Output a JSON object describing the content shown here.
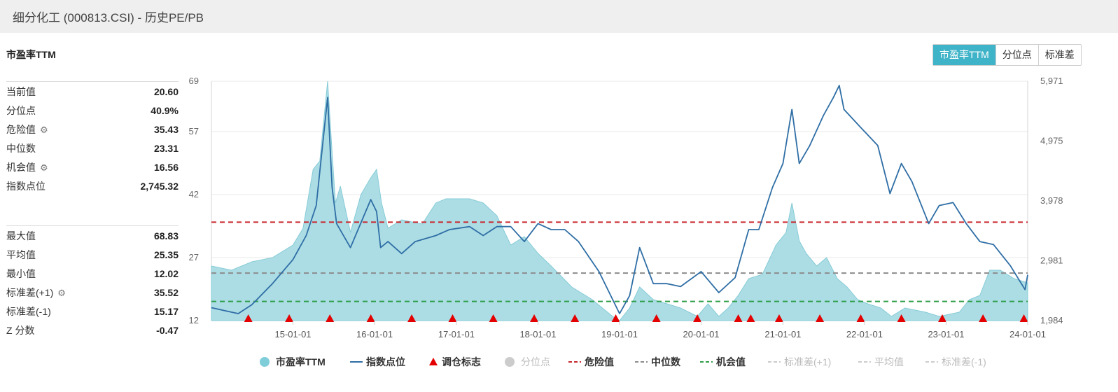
{
  "header": {
    "title": "细分化工 (000813.CSI) - 历史PE/PB"
  },
  "section_title": "市盈率TTM",
  "tabs": [
    {
      "label": "市盈率TTM",
      "active": true
    },
    {
      "label": "分位点",
      "active": false
    },
    {
      "label": "标准差",
      "active": false
    }
  ],
  "stats_top": [
    {
      "label": "当前值",
      "value": "20.60",
      "gear": false
    },
    {
      "label": "分位点",
      "value": "40.9%",
      "gear": false
    },
    {
      "label": "危险值",
      "value": "35.43",
      "gear": true
    },
    {
      "label": "中位数",
      "value": "23.31",
      "gear": false
    },
    {
      "label": "机会值",
      "value": "16.56",
      "gear": true
    },
    {
      "label": "指数点位",
      "value": "2,745.32",
      "gear": false
    }
  ],
  "stats_bottom": [
    {
      "label": "最大值",
      "value": "68.83",
      "gear": false
    },
    {
      "label": "平均值",
      "value": "25.35",
      "gear": false
    },
    {
      "label": "最小值",
      "value": "12.02",
      "gear": false
    },
    {
      "label": "标准差(+1)",
      "value": "35.52",
      "gear": true
    },
    {
      "label": "标准差(-1)",
      "value": "15.17",
      "gear": false
    },
    {
      "label": "Z 分数",
      "value": "-0.47",
      "gear": false
    }
  ],
  "icons": {
    "settings": "gear-icon"
  },
  "colors": {
    "accent": "#3fb3c8",
    "pe_fill": "#9dd7e0",
    "index_line": "#2f6ea5",
    "danger": "#c9262c",
    "median": "#8c8c8c",
    "opportunity": "#2e9e47",
    "rebalance": "#e50000"
  },
  "chart_data": {
    "type": "line",
    "x_ticks": [
      "15-01-01",
      "16-01-01",
      "17-01-01",
      "18-01-01",
      "19-01-01",
      "20-01-01",
      "21-01-01",
      "22-01-01",
      "23-01-01",
      "24-01-01"
    ],
    "x_range": [
      "2014-01-01",
      "2024-01-01"
    ],
    "y_left": {
      "ticks": [
        "12",
        "27",
        "42",
        "57",
        "69"
      ],
      "range": [
        12,
        69
      ]
    },
    "y_right": {
      "ticks": [
        "1,984",
        "2,981",
        "3,978",
        "4,975",
        "5,971"
      ],
      "range": [
        1984,
        5971
      ]
    },
    "hlines": [
      {
        "name": "危险值",
        "value": 35.43
      },
      {
        "name": "中位数",
        "value": 23.31
      },
      {
        "name": "机会值",
        "value": 16.56
      }
    ],
    "series": [
      {
        "name": "市盈率TTM",
        "type": "area",
        "axis": "left",
        "points": [
          [
            "2014-01-01",
            25
          ],
          [
            "2014-04-01",
            24
          ],
          [
            "2014-07-01",
            26
          ],
          [
            "2014-10-01",
            27
          ],
          [
            "2015-01-01",
            30
          ],
          [
            "2015-02-15",
            34
          ],
          [
            "2015-04-01",
            48
          ],
          [
            "2015-05-01",
            50
          ],
          [
            "2015-06-05",
            69
          ],
          [
            "2015-06-25",
            52
          ],
          [
            "2015-07-10",
            40
          ],
          [
            "2015-08-01",
            44
          ],
          [
            "2015-09-15",
            33
          ],
          [
            "2015-11-01",
            42
          ],
          [
            "2015-12-15",
            46
          ],
          [
            "2016-01-10",
            48
          ],
          [
            "2016-02-01",
            40
          ],
          [
            "2016-03-01",
            34
          ],
          [
            "2016-05-01",
            36
          ],
          [
            "2016-08-01",
            35
          ],
          [
            "2016-10-01",
            40
          ],
          [
            "2016-11-15",
            41
          ],
          [
            "2017-01-01",
            41
          ],
          [
            "2017-03-01",
            41
          ],
          [
            "2017-05-01",
            40
          ],
          [
            "2017-07-01",
            37
          ],
          [
            "2017-09-01",
            30
          ],
          [
            "2017-11-01",
            32
          ],
          [
            "2018-01-01",
            28
          ],
          [
            "2018-03-01",
            25
          ],
          [
            "2018-06-01",
            20
          ],
          [
            "2018-09-01",
            17
          ],
          [
            "2018-12-01",
            13
          ],
          [
            "2019-01-01",
            12
          ],
          [
            "2019-02-15",
            15
          ],
          [
            "2019-04-01",
            20
          ],
          [
            "2019-06-01",
            17
          ],
          [
            "2019-08-01",
            16
          ],
          [
            "2019-10-01",
            15
          ],
          [
            "2019-12-15",
            13
          ],
          [
            "2020-02-01",
            16
          ],
          [
            "2020-03-20",
            13
          ],
          [
            "2020-05-01",
            15
          ],
          [
            "2020-06-15",
            18
          ],
          [
            "2020-08-01",
            22
          ],
          [
            "2020-10-01",
            23
          ],
          [
            "2020-12-01",
            30
          ],
          [
            "2021-01-15",
            33
          ],
          [
            "2021-02-10",
            40
          ],
          [
            "2021-03-15",
            31
          ],
          [
            "2021-04-15",
            28
          ],
          [
            "2021-06-01",
            25
          ],
          [
            "2021-07-15",
            27
          ],
          [
            "2021-09-01",
            22
          ],
          [
            "2021-10-15",
            20
          ],
          [
            "2021-12-01",
            17
          ],
          [
            "2022-01-15",
            16
          ],
          [
            "2022-03-15",
            15
          ],
          [
            "2022-05-01",
            13
          ],
          [
            "2022-07-01",
            15
          ],
          [
            "2022-10-01",
            14
          ],
          [
            "2022-12-01",
            13
          ],
          [
            "2023-03-01",
            14
          ],
          [
            "2023-04-15",
            17
          ],
          [
            "2023-06-01",
            18
          ],
          [
            "2023-07-15",
            24
          ],
          [
            "2023-09-01",
            24
          ],
          [
            "2023-11-01",
            22
          ],
          [
            "2024-01-01",
            21
          ]
        ]
      },
      {
        "name": "指数点位",
        "type": "line",
        "axis": "right",
        "points": [
          [
            "2014-01-01",
            2200
          ],
          [
            "2014-03-01",
            2150
          ],
          [
            "2014-05-01",
            2100
          ],
          [
            "2014-07-01",
            2250
          ],
          [
            "2014-10-01",
            2600
          ],
          [
            "2015-01-01",
            3000
          ],
          [
            "2015-03-01",
            3400
          ],
          [
            "2015-04-15",
            3900
          ],
          [
            "2015-06-05",
            5700
          ],
          [
            "2015-06-25",
            4200
          ],
          [
            "2015-07-15",
            3600
          ],
          [
            "2015-09-15",
            3200
          ],
          [
            "2015-12-15",
            4000
          ],
          [
            "2016-01-10",
            3800
          ],
          [
            "2016-01-28",
            3200
          ],
          [
            "2016-03-01",
            3300
          ],
          [
            "2016-05-01",
            3100
          ],
          [
            "2016-07-01",
            3300
          ],
          [
            "2016-10-01",
            3400
          ],
          [
            "2016-12-01",
            3500
          ],
          [
            "2017-03-01",
            3550
          ],
          [
            "2017-05-01",
            3400
          ],
          [
            "2017-07-01",
            3550
          ],
          [
            "2017-09-01",
            3550
          ],
          [
            "2017-11-01",
            3300
          ],
          [
            "2018-01-01",
            3600
          ],
          [
            "2018-03-01",
            3500
          ],
          [
            "2018-05-01",
            3500
          ],
          [
            "2018-07-01",
            3300
          ],
          [
            "2018-10-01",
            2800
          ],
          [
            "2019-01-01",
            2100
          ],
          [
            "2019-02-15",
            2400
          ],
          [
            "2019-04-01",
            3200
          ],
          [
            "2019-06-01",
            2600
          ],
          [
            "2019-08-01",
            2600
          ],
          [
            "2019-10-01",
            2550
          ],
          [
            "2020-01-01",
            2800
          ],
          [
            "2020-03-20",
            2450
          ],
          [
            "2020-06-01",
            2700
          ],
          [
            "2020-08-01",
            3500
          ],
          [
            "2020-09-15",
            3500
          ],
          [
            "2020-11-15",
            4200
          ],
          [
            "2021-01-01",
            4600
          ],
          [
            "2021-02-10",
            5500
          ],
          [
            "2021-03-15",
            4600
          ],
          [
            "2021-05-01",
            4900
          ],
          [
            "2021-07-01",
            5400
          ],
          [
            "2021-08-15",
            5700
          ],
          [
            "2021-09-10",
            5900
          ],
          [
            "2021-10-01",
            5500
          ],
          [
            "2021-12-15",
            5200
          ],
          [
            "2022-03-01",
            4900
          ],
          [
            "2022-04-25",
            4100
          ],
          [
            "2022-06-15",
            4600
          ],
          [
            "2022-08-01",
            4300
          ],
          [
            "2022-10-15",
            3600
          ],
          [
            "2022-12-01",
            3900
          ],
          [
            "2023-02-01",
            3950
          ],
          [
            "2023-04-01",
            3600
          ],
          [
            "2023-06-01",
            3300
          ],
          [
            "2023-08-01",
            3250
          ],
          [
            "2023-10-15",
            2900
          ],
          [
            "2023-12-20",
            2500
          ],
          [
            "2024-01-01",
            2745
          ]
        ]
      },
      {
        "name": "调仓标志",
        "type": "marker",
        "dates": [
          "2014-06-15",
          "2014-12-15",
          "2015-06-15",
          "2015-12-15",
          "2016-06-15",
          "2016-12-15",
          "2017-06-15",
          "2017-12-15",
          "2018-06-15",
          "2018-12-15",
          "2019-06-15",
          "2019-12-15",
          "2020-06-15",
          "2020-08-10",
          "2020-12-15",
          "2021-06-15",
          "2021-12-15",
          "2022-06-15",
          "2022-12-15",
          "2023-06-15",
          "2023-12-15"
        ]
      },
      {
        "name": "分位点",
        "type": "legend-only",
        "disabled": true
      }
    ],
    "legend": [
      {
        "label": "市盈率TTM",
        "symbol": "circle",
        "color": "#7fcdd9",
        "enabled": true
      },
      {
        "label": "指数点位",
        "symbol": "line",
        "color": "#2f6ea5",
        "enabled": true
      },
      {
        "label": "调仓标志",
        "symbol": "triangle",
        "color": "#e50000",
        "enabled": true
      },
      {
        "label": "分位点",
        "symbol": "circle",
        "color": "#cccccc",
        "enabled": false
      },
      {
        "label": "危险值",
        "symbol": "dash",
        "color": "#c9262c",
        "enabled": true
      },
      {
        "label": "中位数",
        "symbol": "dash",
        "color": "#8c8c8c",
        "enabled": true
      },
      {
        "label": "机会值",
        "symbol": "dash",
        "color": "#2e9e47",
        "enabled": true
      },
      {
        "label": "标准差(+1)",
        "symbol": "dash",
        "color": "#cccccc",
        "enabled": false
      },
      {
        "label": "平均值",
        "symbol": "dash",
        "color": "#cccccc",
        "enabled": false
      },
      {
        "label": "标准差(-1)",
        "symbol": "dash",
        "color": "#cccccc",
        "enabled": false
      }
    ],
    "legend_position": "bottom",
    "grid": true
  }
}
